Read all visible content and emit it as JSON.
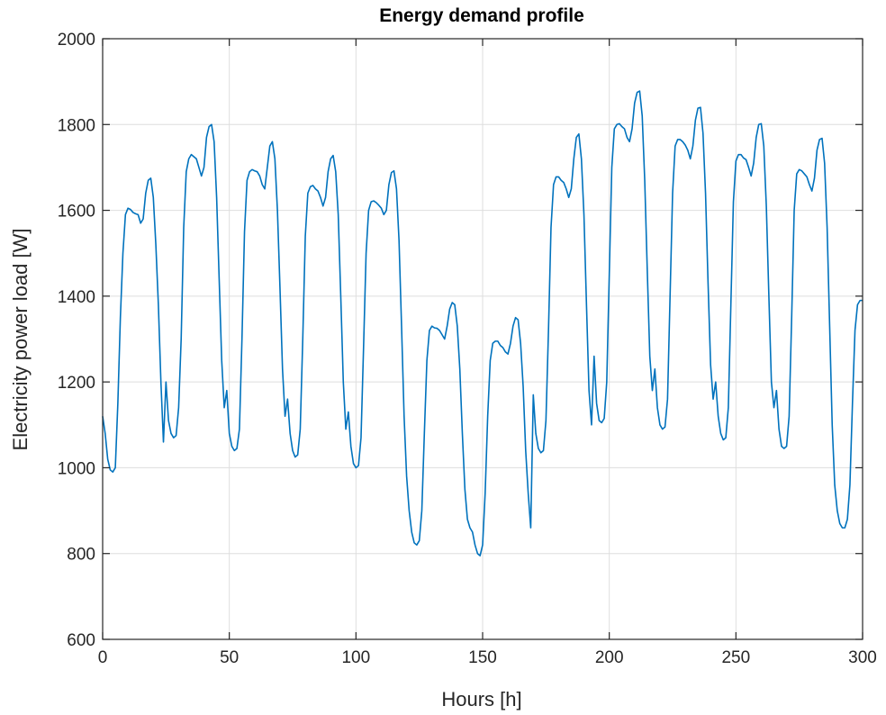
{
  "chart_data": {
    "type": "line",
    "title": "Energy demand profile",
    "xlabel": "Hours [h]",
    "ylabel": "Electricity power load [W]",
    "xlim": [
      0,
      300
    ],
    "ylim": [
      600,
      2000
    ],
    "xticks": [
      0,
      50,
      100,
      150,
      200,
      250,
      300
    ],
    "yticks": [
      600,
      800,
      1000,
      1200,
      1400,
      1600,
      1800,
      2000
    ],
    "grid": true,
    "series": [
      {
        "color": "#0072bd",
        "x": [
          0,
          1,
          2,
          3,
          4,
          5,
          6,
          7,
          8,
          9,
          10,
          11,
          12,
          13,
          14,
          15,
          16,
          17,
          18,
          19,
          20,
          21,
          22,
          23,
          24,
          25,
          26,
          27,
          28,
          29,
          30,
          31,
          32,
          33,
          34,
          35,
          36,
          37,
          38,
          39,
          40,
          41,
          42,
          43,
          44,
          45,
          46,
          47,
          48,
          49,
          50,
          51,
          52,
          53,
          54,
          55,
          56,
          57,
          58,
          59,
          60,
          61,
          62,
          63,
          64,
          65,
          66,
          67,
          68,
          69,
          70,
          71,
          72,
          73,
          74,
          75,
          76,
          77,
          78,
          79,
          80,
          81,
          82,
          83,
          84,
          85,
          86,
          87,
          88,
          89,
          90,
          91,
          92,
          93,
          94,
          95,
          96,
          97,
          98,
          99,
          100,
          101,
          102,
          103,
          104,
          105,
          106,
          107,
          108,
          109,
          110,
          111,
          112,
          113,
          114,
          115,
          116,
          117,
          118,
          119,
          120,
          121,
          122,
          123,
          124,
          125,
          126,
          127,
          128,
          129,
          130,
          131,
          132,
          133,
          134,
          135,
          136,
          137,
          138,
          139,
          140,
          141,
          142,
          143,
          144,
          145,
          146,
          147,
          148,
          149,
          150,
          151,
          152,
          153,
          154,
          155,
          156,
          157,
          158,
          159,
          160,
          161,
          162,
          163,
          164,
          165,
          166,
          167,
          168,
          169,
          170,
          171,
          172,
          173,
          174,
          175,
          176,
          177,
          178,
          179,
          180,
          181,
          182,
          183,
          184,
          185,
          186,
          187,
          188,
          189,
          190,
          191,
          192,
          193,
          194,
          195,
          196,
          197,
          198,
          199,
          200,
          201,
          202,
          203,
          204,
          205,
          206,
          207,
          208,
          209,
          210,
          211,
          212,
          213,
          214,
          215,
          216,
          217,
          218,
          219,
          220,
          221,
          222,
          223,
          224,
          225,
          226,
          227,
          228,
          229,
          230,
          231,
          232,
          233,
          234,
          235,
          236,
          237,
          238,
          239,
          240,
          241,
          242,
          243,
          244,
          245,
          246,
          247,
          248,
          249,
          250,
          251,
          252,
          253,
          254,
          255,
          256,
          257,
          258,
          259,
          260,
          261,
          262,
          263,
          264,
          265,
          266,
          267,
          268,
          269,
          270,
          271,
          272,
          273,
          274,
          275,
          276,
          277,
          278,
          279,
          280,
          281,
          282,
          283,
          284,
          285,
          286,
          287,
          288,
          289,
          290,
          291,
          292,
          293,
          294,
          295,
          296,
          297,
          298,
          299,
          300
        ],
        "values": [
          1120,
          1080,
          1020,
          995,
          990,
          1000,
          1150,
          1350,
          1500,
          1590,
          1605,
          1602,
          1595,
          1592,
          1590,
          1570,
          1580,
          1640,
          1670,
          1675,
          1630,
          1520,
          1380,
          1200,
          1060,
          1200,
          1110,
          1080,
          1070,
          1075,
          1140,
          1300,
          1560,
          1690,
          1720,
          1730,
          1725,
          1720,
          1700,
          1680,
          1700,
          1770,
          1795,
          1800,
          1760,
          1630,
          1440,
          1250,
          1140,
          1180,
          1080,
          1050,
          1040,
          1045,
          1090,
          1300,
          1550,
          1670,
          1690,
          1695,
          1692,
          1690,
          1680,
          1660,
          1650,
          1700,
          1750,
          1760,
          1720,
          1600,
          1420,
          1230,
          1120,
          1160,
          1080,
          1040,
          1025,
          1030,
          1090,
          1300,
          1540,
          1640,
          1655,
          1658,
          1650,
          1645,
          1630,
          1610,
          1630,
          1690,
          1720,
          1728,
          1690,
          1590,
          1400,
          1200,
          1090,
          1130,
          1050,
          1010,
          1000,
          1005,
          1070,
          1280,
          1500,
          1600,
          1620,
          1622,
          1618,
          1612,
          1605,
          1590,
          1600,
          1660,
          1688,
          1692,
          1650,
          1530,
          1330,
          1120,
          980,
          900,
          850,
          825,
          820,
          830,
          900,
          1080,
          1250,
          1320,
          1330,
          1326,
          1325,
          1320,
          1310,
          1300,
          1330,
          1370,
          1385,
          1380,
          1330,
          1230,
          1080,
          950,
          880,
          860,
          850,
          820,
          800,
          795,
          820,
          940,
          1120,
          1250,
          1290,
          1295,
          1295,
          1285,
          1280,
          1270,
          1265,
          1290,
          1330,
          1350,
          1345,
          1290,
          1190,
          1040,
          940,
          860,
          1170,
          1080,
          1045,
          1035,
          1040,
          1110,
          1320,
          1560,
          1660,
          1678,
          1678,
          1670,
          1665,
          1650,
          1630,
          1650,
          1720,
          1770,
          1778,
          1720,
          1590,
          1380,
          1180,
          1100,
          1260,
          1150,
          1110,
          1105,
          1115,
          1200,
          1450,
          1700,
          1790,
          1800,
          1802,
          1795,
          1790,
          1770,
          1760,
          1790,
          1850,
          1875,
          1878,
          1820,
          1670,
          1460,
          1260,
          1180,
          1230,
          1140,
          1100,
          1090,
          1095,
          1160,
          1400,
          1640,
          1750,
          1765,
          1765,
          1760,
          1752,
          1740,
          1720,
          1750,
          1810,
          1838,
          1840,
          1780,
          1640,
          1430,
          1240,
          1160,
          1200,
          1120,
          1080,
          1065,
          1070,
          1140,
          1380,
          1620,
          1715,
          1730,
          1730,
          1722,
          1718,
          1700,
          1680,
          1710,
          1770,
          1800,
          1802,
          1750,
          1610,
          1400,
          1200,
          1140,
          1180,
          1090,
          1050,
          1045,
          1050,
          1120,
          1350,
          1600,
          1685,
          1695,
          1692,
          1685,
          1678,
          1660,
          1645,
          1675,
          1740,
          1765,
          1768,
          1710,
          1560,
          1330,
          1100,
          960,
          900,
          870,
          860,
          860,
          880,
          960,
          1150,
          1320,
          1380,
          1390,
          1390
        ]
      }
    ]
  }
}
